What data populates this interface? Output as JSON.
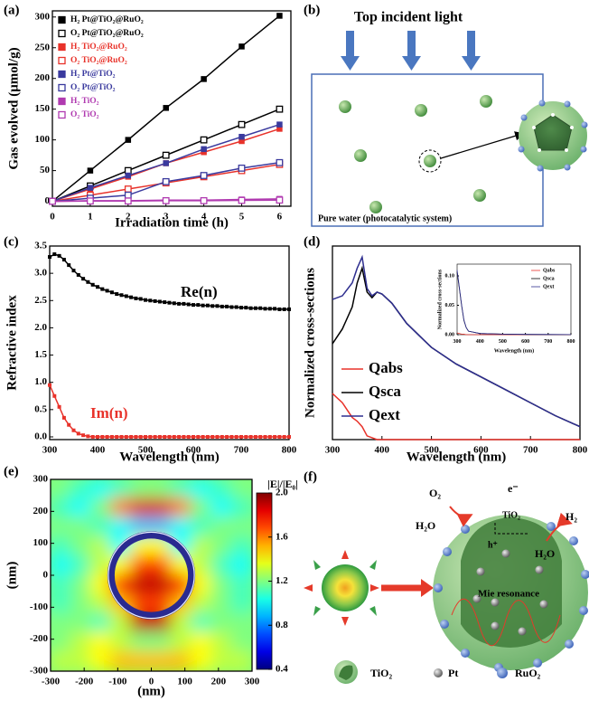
{
  "chart_data": [
    {
      "type": "line",
      "label": "(a)",
      "xlabel": "Irradiation time (h)",
      "ylabel": "Gas evolved (μmol/g)",
      "x": [
        0,
        1,
        2,
        3,
        4,
        5,
        6
      ],
      "xlim": [
        0,
        6.3
      ],
      "ylim": [
        -8,
        310
      ],
      "xticks": [
        0,
        1,
        2,
        3,
        4,
        5,
        6
      ],
      "yticks": [
        0,
        50,
        100,
        150,
        200,
        250,
        300
      ],
      "legend": "upper left",
      "series": [
        {
          "name": "H₂  Pt@TiO₂@RuO₂",
          "color": "#000000",
          "marker": "filled-square",
          "values": [
            0,
            50,
            100,
            152,
            199,
            252,
            302
          ]
        },
        {
          "name": "O₂  Pt@TiO₂@RuO₂",
          "color": "#000000",
          "marker": "open-square",
          "values": [
            0,
            25,
            50,
            75,
            100,
            125,
            150
          ]
        },
        {
          "name": "H₂  TiO₂@RuO₂",
          "color": "#e8322a",
          "marker": "filled-square",
          "values": [
            0,
            20,
            40,
            62,
            80,
            98,
            118
          ]
        },
        {
          "name": "O₂  TiO₂@RuO₂",
          "color": "#e8322a",
          "marker": "open-square",
          "values": [
            0,
            10,
            20,
            30,
            40,
            50,
            60
          ]
        },
        {
          "name": "H₂  Pt@TiO₂",
          "color": "#3a3a9e",
          "marker": "filled-square",
          "values": [
            0,
            22,
            42,
            62,
            85,
            105,
            125
          ]
        },
        {
          "name": "O₂  Pt@TiO₂",
          "color": "#3a3a9e",
          "marker": "open-square",
          "values": [
            0,
            5,
            10,
            32,
            42,
            54,
            63
          ]
        },
        {
          "name": "H₂  TiO₂",
          "color": "#b03ab0",
          "marker": "filled-square",
          "values": [
            0,
            1,
            1,
            2,
            2,
            3,
            4
          ]
        },
        {
          "name": "O₂  TiO₂",
          "color": "#b03ab0",
          "marker": "open-square",
          "values": [
            0,
            0.5,
            0.5,
            1,
            1,
            1.5,
            2
          ]
        }
      ]
    },
    {
      "type": "line",
      "label": "(c)",
      "xlabel": "Wavelength (nm)",
      "ylabel": "Refractive index",
      "x": [
        300,
        310,
        320,
        330,
        340,
        350,
        360,
        370,
        380,
        390,
        400,
        410,
        420,
        430,
        440,
        450,
        460,
        470,
        480,
        490,
        500,
        510,
        520,
        530,
        540,
        550,
        560,
        570,
        580,
        590,
        600,
        610,
        620,
        630,
        640,
        650,
        660,
        670,
        680,
        690,
        700,
        710,
        720,
        730,
        740,
        750,
        760,
        770,
        780,
        790,
        800
      ],
      "xlim": [
        300,
        800
      ],
      "ylim": [
        -0.05,
        3.5
      ],
      "xticks": [
        300,
        400,
        500,
        600,
        700,
        800
      ],
      "yticks": [
        {
          "value": 0,
          "label": "0.0"
        },
        0.5,
        {
          "value": 1,
          "label": "1.0"
        },
        1.5,
        {
          "value": 2,
          "label": "2.0"
        },
        2.5,
        {
          "value": 3,
          "label": "3.0"
        },
        3.5
      ],
      "legend": "none",
      "series": [
        {
          "name": "Re(n)",
          "color": "#000000",
          "marker": "filled-square",
          "values": [
            3.3,
            3.35,
            3.32,
            3.25,
            3.15,
            3.05,
            2.97,
            2.9,
            2.84,
            2.79,
            2.75,
            2.71,
            2.68,
            2.65,
            2.62,
            2.6,
            2.58,
            2.56,
            2.54,
            2.53,
            2.51,
            2.5,
            2.49,
            2.48,
            2.47,
            2.46,
            2.45,
            2.44,
            2.44,
            2.43,
            2.42,
            2.42,
            2.41,
            2.41,
            2.4,
            2.4,
            2.39,
            2.39,
            2.38,
            2.38,
            2.37,
            2.37,
            2.36,
            2.36,
            2.36,
            2.35,
            2.35,
            2.35,
            2.34,
            2.34,
            2.34
          ]
        },
        {
          "name": "Im(n)",
          "color": "#e8322a",
          "marker": "filled-square",
          "values": [
            0.95,
            0.75,
            0.55,
            0.35,
            0.22,
            0.12,
            0.06,
            0.03,
            0.01,
            0,
            0,
            0,
            0,
            0,
            0,
            0,
            0,
            0,
            0,
            0,
            0,
            0,
            0,
            0,
            0,
            0,
            0,
            0,
            0,
            0,
            0,
            0,
            0,
            0,
            0,
            0,
            0,
            0,
            0,
            0,
            0,
            0,
            0,
            0,
            0,
            0,
            0,
            0,
            0,
            0,
            0
          ]
        }
      ]
    },
    {
      "type": "line",
      "label": "(d)",
      "xlabel": "Wavelength (nm)",
      "ylabel": "Normalized cross-sections",
      "x": [
        300,
        320,
        340,
        350,
        360,
        370,
        380,
        390,
        400,
        420,
        450,
        500,
        550,
        600,
        650,
        700,
        750,
        800
      ],
      "xlim": [
        300,
        800
      ],
      "ylim": [
        0,
        1.05
      ],
      "xticks": [
        300,
        400,
        500,
        600,
        700,
        800
      ],
      "legend": "lower left",
      "series": [
        {
          "name": "Qabs",
          "color": "#e8322a",
          "values": [
            0.25,
            0.2,
            0.12,
            0.1,
            0.07,
            0.02,
            0.01,
            0,
            0,
            0,
            0,
            0,
            0,
            0,
            0,
            0,
            0,
            0
          ]
        },
        {
          "name": "Qsca",
          "color": "#000000",
          "values": [
            0.52,
            0.6,
            0.72,
            0.85,
            0.93,
            0.8,
            0.77,
            0.8,
            0.79,
            0.74,
            0.63,
            0.5,
            0.41,
            0.34,
            0.27,
            0.2,
            0.13,
            0.07
          ]
        },
        {
          "name": "Qext",
          "color": "#2e2e8f",
          "values": [
            0.76,
            0.78,
            0.85,
            0.93,
            0.99,
            0.82,
            0.78,
            0.8,
            0.79,
            0.74,
            0.63,
            0.5,
            0.41,
            0.34,
            0.27,
            0.2,
            0.13,
            0.07
          ]
        }
      ]
    },
    {
      "type": "line",
      "xlabel": "Wavelength (nm)",
      "ylabel": "Normalized cross-sections",
      "x": [
        300,
        310,
        320,
        330,
        340,
        350,
        400,
        500,
        600,
        700,
        800
      ],
      "xlim": [
        300,
        800
      ],
      "ylim": [
        0,
        0.12
      ],
      "xticks": [
        300,
        400,
        500,
        600,
        700,
        800
      ],
      "yticks": [
        {
          "value": 0,
          "label": "0.00"
        },
        0.05,
        {
          "value": 0.1,
          "label": "0.10"
        }
      ],
      "legend": "upper right",
      "series": [
        {
          "name": "Qabs",
          "color": "#e8322a",
          "values": [
            0.003,
            0.002,
            0.001,
            0.001,
            0,
            0,
            0,
            0,
            0,
            0,
            0
          ]
        },
        {
          "name": "Qsca",
          "color": "#000000",
          "values": [
            0.107,
            0.078,
            0.049,
            0.024,
            0.012,
            0.006,
            0.002,
            0.001,
            0.0005,
            0.0003,
            0.0002
          ]
        },
        {
          "name": "Qext",
          "color": "#2e2e8f",
          "values": [
            0.11,
            0.08,
            0.05,
            0.025,
            0.012,
            0.006,
            0.002,
            0.001,
            0.0005,
            0.0003,
            0.0002
          ]
        }
      ]
    },
    {
      "type": "heatmap",
      "label": "(e)",
      "xlabel": "(nm)",
      "ylabel": "(nm)",
      "x": [
        -270,
        -210,
        -150,
        -90,
        -30,
        30,
        90,
        150,
        210,
        270
      ],
      "y": [
        270,
        210,
        150,
        90,
        30,
        -30,
        -90,
        -150,
        -210,
        -270
      ],
      "xlim": [
        -300,
        300
      ],
      "ylim": [
        -300,
        300
      ],
      "xticks": [
        -300,
        -200,
        -100,
        0,
        100,
        200,
        300
      ],
      "yticks": [
        -300,
        -200,
        -100,
        0,
        100,
        200,
        300
      ],
      "z": [
        [
          1.2,
          1.1,
          1.0,
          1.1,
          1.2,
          1.2,
          1.1,
          1.0,
          1.1,
          1.2
        ],
        [
          1.1,
          1.0,
          1.2,
          1.6,
          1.85,
          1.85,
          1.6,
          1.2,
          1.0,
          1.1
        ],
        [
          1.2,
          1.2,
          1.1,
          1.0,
          0.9,
          0.9,
          1.0,
          1.1,
          1.2,
          1.2
        ],
        [
          1.1,
          1.2,
          1.3,
          1.0,
          1.4,
          1.4,
          1.0,
          1.3,
          1.2,
          1.1
        ],
        [
          1.0,
          1.1,
          1.3,
          1.4,
          1.7,
          1.7,
          1.4,
          1.3,
          1.1,
          1.0
        ],
        [
          1.1,
          1.2,
          1.4,
          1.8,
          1.9,
          1.9,
          1.8,
          1.4,
          1.2,
          1.1
        ],
        [
          1.1,
          1.2,
          1.3,
          1.5,
          1.7,
          1.7,
          1.5,
          1.3,
          1.2,
          1.1
        ],
        [
          1.2,
          1.2,
          1.1,
          1.3,
          1.9,
          1.9,
          1.3,
          1.1,
          1.2,
          1.2
        ],
        [
          1.2,
          1.3,
          1.4,
          1.3,
          1.2,
          1.2,
          1.3,
          1.4,
          1.3,
          1.2
        ],
        [
          1.3,
          1.3,
          1.4,
          1.5,
          1.5,
          1.5,
          1.5,
          1.4,
          1.3,
          1.3
        ]
      ],
      "colorbar": {
        "label": "|E|/|E₀|",
        "lim": [
          0.4,
          2.0
        ],
        "ticks": [
          0.4,
          0.8,
          1.2,
          1.6,
          {
            "value": 2,
            "label": "2.0"
          }
        ]
      }
    }
  ],
  "diagrams": {
    "b": {
      "label": "(b)",
      "title": "Top incident light",
      "caption": "Pure water (photocatalytic system)"
    },
    "f": {
      "label": "(f)",
      "labels": [
        "O₂",
        "e⁻",
        "TiO₂",
        "H₂",
        "H₂O",
        "h⁺",
        "H₂O",
        "Mie resonance"
      ],
      "legend": [
        "TiO₂",
        "Pt",
        "RuO₂"
      ]
    }
  }
}
